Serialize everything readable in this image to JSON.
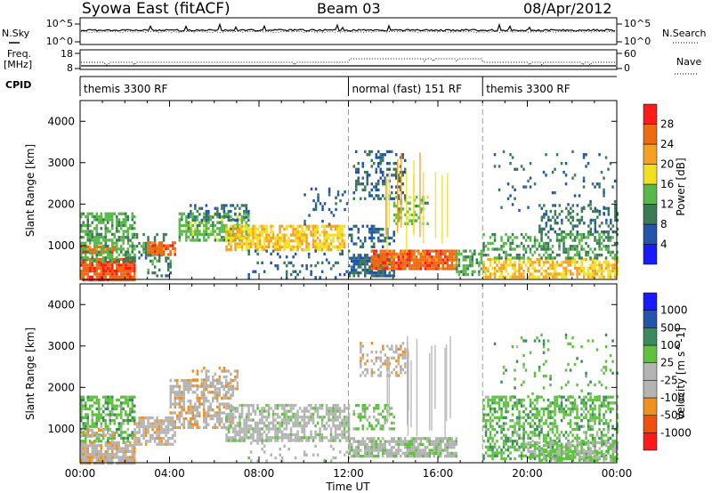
{
  "header": {
    "station": "Syowa East (fitACF)",
    "beam": "Beam 03",
    "date": "08/Apr/2012"
  },
  "aux_panels": {
    "nsky_label": "N.Sky",
    "nsky_tick_top": "10^5",
    "nsky_tick_bottom": "10^0",
    "nsearch_label": "N.Search",
    "nsearch_tick_top": "10^5",
    "nsearch_tick_bottom": "10^0",
    "freq_label_1": "Freq.",
    "freq_label_2": "[MHz]",
    "freq_tick_top": "18",
    "freq_tick_bottom": "8",
    "nave_label": "Nave",
    "nave_tick_top": "60",
    "nave_tick_bottom": "0",
    "cpid_label": "CPID",
    "cpid_segments": [
      {
        "label": "themis 3300 RF",
        "start_hour": 0,
        "end_hour": 12
      },
      {
        "label": "normal (fast) 151 RF",
        "start_hour": 12,
        "end_hour": 18
      },
      {
        "label": "themis 3300 RF",
        "start_hour": 18,
        "end_hour": 24
      }
    ]
  },
  "x_axis": {
    "label": "Time UT",
    "tick_labels": [
      "00:00",
      "04:00",
      "08:00",
      "12:00",
      "16:00",
      "20:00",
      "00:00"
    ]
  },
  "colors": {
    "power_scale": [
      "#1a1aff",
      "#2255aa",
      "#3a7a55",
      "#58b84a",
      "#f0e020",
      "#f5a020",
      "#ee6a10",
      "#ff1a1a"
    ],
    "velocity_scale": [
      "#ff1a1a",
      "#ee5010",
      "#f09020",
      "#b4b4b4",
      "#b4b4b4",
      "#60c040",
      "#3a8a60",
      "#2255aa",
      "#1a1aff"
    ]
  },
  "chart_data": [
    {
      "type": "heatmap",
      "panel": "power",
      "ylabel": "Slant Range [km]",
      "ylim": [
        180,
        4500
      ],
      "y_ticks": [
        "1000",
        "2000",
        "3000",
        "4000"
      ],
      "xlim_hours": [
        0,
        24
      ],
      "colorbar": {
        "label": "Power [dB]",
        "ticks": [
          "4",
          "8",
          "12",
          "16",
          "20",
          "24",
          "28"
        ],
        "range": [
          0,
          32
        ]
      },
      "regions": [
        {
          "start": 0.0,
          "end": 2.4,
          "rmin": 200,
          "rmax": 700,
          "value": 27,
          "density": 0.9
        },
        {
          "start": 0.0,
          "end": 1.5,
          "rmin": 800,
          "rmax": 1000,
          "value": 26,
          "density": 0.85
        },
        {
          "start": 0.0,
          "end": 2.4,
          "rmin": 600,
          "rmax": 1800,
          "value": 13,
          "density": 0.6
        },
        {
          "start": 2.0,
          "end": 3.8,
          "rmin": 600,
          "rmax": 1300,
          "value": 10,
          "density": 0.35
        },
        {
          "start": 3.0,
          "end": 4.2,
          "rmin": 800,
          "rmax": 1100,
          "value": 26,
          "density": 0.85
        },
        {
          "start": 3.0,
          "end": 4.0,
          "rmin": 300,
          "rmax": 800,
          "value": 10,
          "density": 0.3
        },
        {
          "start": 4.4,
          "end": 7.5,
          "rmin": 1100,
          "rmax": 1800,
          "value": 14,
          "density": 0.6
        },
        {
          "start": 4.8,
          "end": 7.5,
          "rmin": 1600,
          "rmax": 2000,
          "value": 8,
          "density": 0.35
        },
        {
          "start": 6.5,
          "end": 11.8,
          "rmin": 900,
          "rmax": 1500,
          "value": 20,
          "density": 0.7
        },
        {
          "start": 7.5,
          "end": 12.0,
          "rmin": 250,
          "rmax": 900,
          "value": 7,
          "density": 0.12
        },
        {
          "start": 10.0,
          "end": 12.0,
          "rmin": 1500,
          "rmax": 2400,
          "value": 7,
          "density": 0.12
        },
        {
          "start": 12.0,
          "end": 14.0,
          "rmin": 300,
          "rmax": 800,
          "value": 8,
          "density": 0.7
        },
        {
          "start": 12.0,
          "end": 14.0,
          "rmin": 1000,
          "rmax": 1500,
          "value": 8,
          "density": 0.4
        },
        {
          "start": 13.0,
          "end": 16.8,
          "rmin": 450,
          "rmax": 900,
          "value": 26,
          "density": 0.9
        },
        {
          "start": 12.2,
          "end": 14.5,
          "rmin": 2100,
          "rmax": 3300,
          "value": 8,
          "density": 0.3
        },
        {
          "start": 14.0,
          "end": 15.5,
          "rmin": 1500,
          "rmax": 2200,
          "value": 14,
          "density": 0.4
        },
        {
          "start": 16.8,
          "end": 18.0,
          "rmin": 300,
          "rmax": 900,
          "value": 13,
          "density": 0.5
        },
        {
          "start": 18.0,
          "end": 24.0,
          "rmin": 250,
          "rmax": 700,
          "value": 20,
          "density": 0.65
        },
        {
          "start": 18.0,
          "end": 24.0,
          "rmin": 700,
          "rmax": 1300,
          "value": 12,
          "density": 0.45
        },
        {
          "start": 20.5,
          "end": 24.0,
          "rmin": 1300,
          "rmax": 2000,
          "value": 9,
          "density": 0.3
        },
        {
          "start": 18.5,
          "end": 24.0,
          "rmin": 1800,
          "rmax": 3300,
          "value": 8,
          "density": 0.06
        }
      ]
    },
    {
      "type": "heatmap",
      "panel": "velocity",
      "ylabel": "Slant Range [km]",
      "ylim": [
        180,
        4500
      ],
      "y_ticks": [
        "1000",
        "2000",
        "3000",
        "4000"
      ],
      "xlim_hours": [
        0,
        24
      ],
      "colorbar": {
        "label": "Velocity [m s^-1]",
        "ticks": [
          "-1000",
          "-500",
          "-100",
          "-25",
          "25",
          "100",
          "500",
          "1000"
        ],
        "range": [
          -1200,
          1200
        ]
      },
      "regions": [
        {
          "start": 0.0,
          "end": 2.4,
          "rmin": 200,
          "rmax": 700,
          "value": -300,
          "density": 0.85
        },
        {
          "start": 0.0,
          "end": 2.4,
          "rmin": 700,
          "rmax": 1800,
          "value": 300,
          "density": 0.6
        },
        {
          "start": 0.0,
          "end": 1.5,
          "rmin": 800,
          "rmax": 1000,
          "value": -300,
          "density": 0.6
        },
        {
          "start": 2.4,
          "end": 4.2,
          "rmin": 600,
          "rmax": 1300,
          "value": -300,
          "density": 0.7
        },
        {
          "start": 4.0,
          "end": 6.8,
          "rmin": 1000,
          "rmax": 2200,
          "value": -300,
          "density": 0.6
        },
        {
          "start": 5.0,
          "end": 7.0,
          "rmin": 2000,
          "rmax": 2500,
          "value": -300,
          "density": 0.35
        },
        {
          "start": 6.5,
          "end": 12.0,
          "rmin": 700,
          "rmax": 1600,
          "value": 0,
          "density": 0.65
        },
        {
          "start": 7.5,
          "end": 12.0,
          "rmin": 250,
          "rmax": 900,
          "value": -50,
          "density": 0.1
        },
        {
          "start": 12.0,
          "end": 16.8,
          "rmin": 350,
          "rmax": 800,
          "value": 60,
          "density": 0.8
        },
        {
          "start": 12.5,
          "end": 14.5,
          "rmin": 2300,
          "rmax": 3100,
          "value": -300,
          "density": 0.35
        },
        {
          "start": 12.2,
          "end": 14.0,
          "rmin": 1000,
          "rmax": 1600,
          "value": 200,
          "density": 0.35
        },
        {
          "start": 18.0,
          "end": 24.0,
          "rmin": 250,
          "rmax": 1800,
          "value": 300,
          "density": 0.5
        },
        {
          "start": 20.0,
          "end": 24.0,
          "rmin": 250,
          "rmax": 700,
          "value": 150,
          "density": 0.6
        },
        {
          "start": 18.5,
          "end": 24.0,
          "rmin": 1800,
          "rmax": 3300,
          "value": 300,
          "density": 0.06
        }
      ]
    }
  ]
}
